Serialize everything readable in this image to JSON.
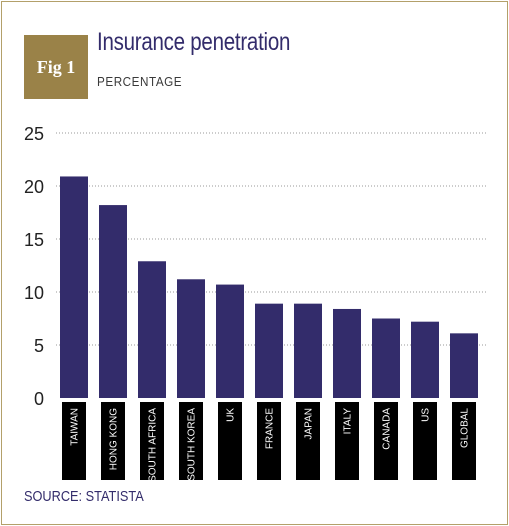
{
  "badge": "Fig 1",
  "title": "Insurance penetration",
  "subtitle": "PERCENTAGE",
  "source": "SOURCE: STATISTA",
  "colors": {
    "bar": "#332c6b",
    "badge": "#9a8248",
    "label_bg": "#000000",
    "grid": "#999999",
    "frame": "#b3a06a"
  },
  "chart_data": {
    "type": "bar",
    "categories": [
      "TAIWAN",
      "HONG KONG",
      "SOUTH AFRICA",
      "SOUTH KOREA",
      "UK",
      "FRANCE",
      "JAPAN",
      "ITALY",
      "CANADA",
      "US",
      "GLOBAL"
    ],
    "values": [
      20.9,
      18.2,
      12.9,
      11.2,
      10.7,
      8.9,
      8.9,
      8.4,
      7.5,
      7.2,
      6.1
    ],
    "ylim": [
      0,
      25
    ],
    "yticks": [
      0,
      5,
      10,
      15,
      20,
      25
    ],
    "grid": "dotted horizontal",
    "legend": "none"
  }
}
